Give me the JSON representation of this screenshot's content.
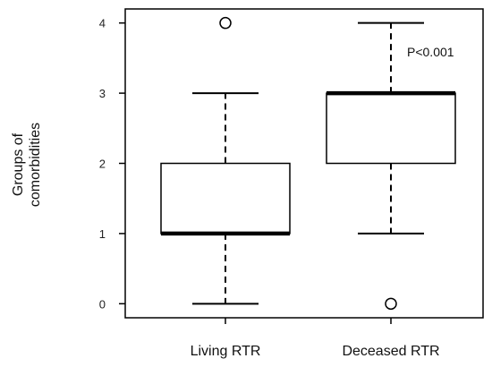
{
  "chart_data": {
    "type": "box",
    "ylabel_lines": [
      "Groups of",
      "comorbidities"
    ],
    "ylim": [
      -0.2,
      4.2
    ],
    "yticks": [
      0,
      1,
      2,
      3,
      4
    ],
    "categories": [
      "Living RTR",
      "Deceased RTR"
    ],
    "boxes": [
      {
        "category": "Living RTR",
        "whisker_low": 0,
        "q1": 1,
        "median": 1,
        "q3": 2,
        "whisker_high": 3,
        "outliers": [
          4
        ]
      },
      {
        "category": "Deceased RTR",
        "whisker_low": 1,
        "q1": 2,
        "median": 3,
        "q3": 3,
        "whisker_high": 4,
        "outliers": [
          0
        ]
      }
    ],
    "annotation": "P<0.001",
    "grid": false
  }
}
